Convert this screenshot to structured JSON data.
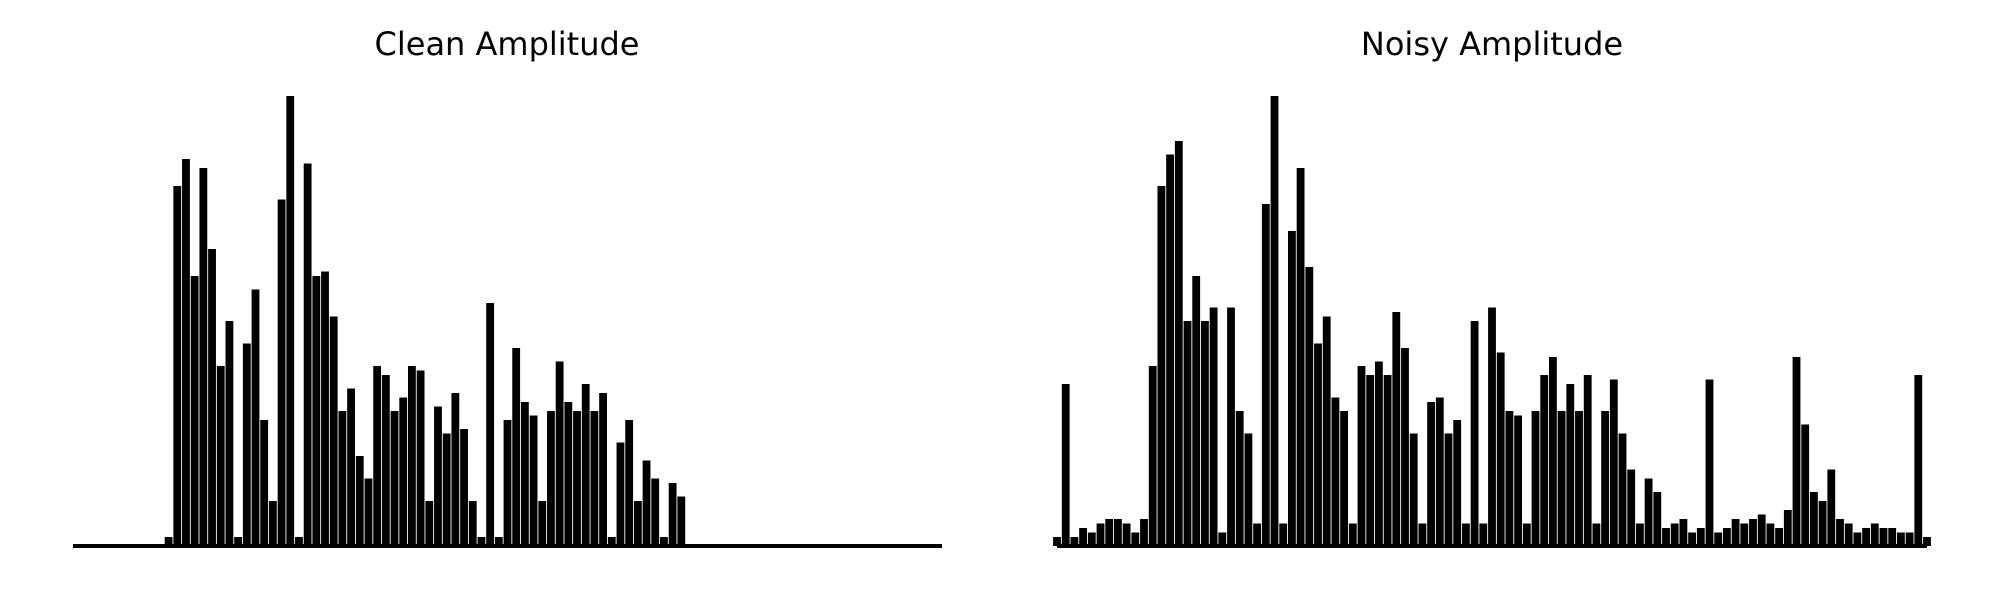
{
  "chart_data": [
    {
      "type": "bar",
      "title": "Clean Amplitude",
      "color": "#000000",
      "ylim": [
        0,
        1
      ],
      "values": [
        0,
        0,
        0,
        0,
        0,
        0,
        0,
        0,
        0,
        0,
        0,
        0.02,
        0.8,
        0.86,
        0.6,
        0.84,
        0.66,
        0.4,
        0.5,
        0.02,
        0.45,
        0.57,
        0.28,
        0.1,
        0.77,
        1.0,
        0.02,
        0.85,
        0.6,
        0.61,
        0.51,
        0.3,
        0.35,
        0.2,
        0.15,
        0.4,
        0.38,
        0.3,
        0.33,
        0.4,
        0.39,
        0.1,
        0.31,
        0.25,
        0.34,
        0.26,
        0.1,
        0.02,
        0.54,
        0.02,
        0.28,
        0.44,
        0.32,
        0.29,
        0.1,
        0.3,
        0.41,
        0.32,
        0.3,
        0.36,
        0.3,
        0.34,
        0.02,
        0.23,
        0.28,
        0.1,
        0.19,
        0.15,
        0.02,
        0.14,
        0.11,
        0,
        0,
        0,
        0,
        0,
        0,
        0,
        0,
        0,
        0,
        0,
        0,
        0,
        0,
        0,
        0,
        0,
        0,
        0,
        0,
        0,
        0,
        0,
        0,
        0,
        0,
        0,
        0,
        0,
        0
      ]
    },
    {
      "type": "bar",
      "title": "Noisy Amplitude",
      "color": "#000000",
      "ylim": [
        0,
        1
      ],
      "values": [
        0.02,
        0.36,
        0.02,
        0.04,
        0.03,
        0.05,
        0.06,
        0.06,
        0.05,
        0.03,
        0.06,
        0.4,
        0.8,
        0.87,
        0.9,
        0.5,
        0.6,
        0.5,
        0.53,
        0.03,
        0.53,
        0.3,
        0.25,
        0.05,
        0.76,
        1.0,
        0.05,
        0.7,
        0.84,
        0.62,
        0.45,
        0.51,
        0.33,
        0.3,
        0.05,
        0.4,
        0.38,
        0.41,
        0.38,
        0.52,
        0.44,
        0.25,
        0.05,
        0.32,
        0.33,
        0.25,
        0.28,
        0.05,
        0.5,
        0.05,
        0.53,
        0.43,
        0.3,
        0.29,
        0.05,
        0.3,
        0.38,
        0.42,
        0.3,
        0.36,
        0.3,
        0.38,
        0.05,
        0.3,
        0.37,
        0.25,
        0.17,
        0.05,
        0.15,
        0.12,
        0.04,
        0.05,
        0.06,
        0.03,
        0.04,
        0.37,
        0.03,
        0.04,
        0.06,
        0.05,
        0.06,
        0.07,
        0.05,
        0.04,
        0.08,
        0.42,
        0.27,
        0.12,
        0.1,
        0.17,
        0.06,
        0.05,
        0.03,
        0.04,
        0.05,
        0.04,
        0.04,
        0.03,
        0.03,
        0.38,
        0.02
      ]
    }
  ]
}
